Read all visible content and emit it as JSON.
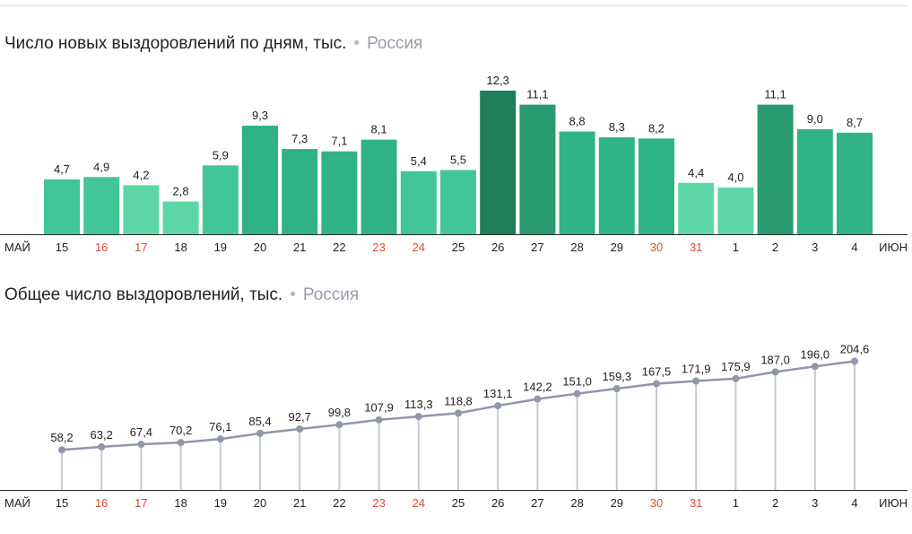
{
  "chart_data": [
    {
      "type": "bar",
      "title": "Число новых выздоровлений по дням, тыс.",
      "region": "Россия",
      "start_month_label": "МАЙ",
      "end_month_label": "ИЮН",
      "categories": [
        "15",
        "16",
        "17",
        "18",
        "19",
        "20",
        "21",
        "22",
        "23",
        "24",
        "25",
        "26",
        "27",
        "28",
        "29",
        "30",
        "31",
        "1",
        "2",
        "3",
        "4"
      ],
      "weekend_categories": [
        "16",
        "17",
        "23",
        "24",
        "30",
        "31"
      ],
      "values": [
        4.7,
        4.9,
        4.2,
        2.8,
        5.9,
        9.3,
        7.3,
        7.1,
        8.1,
        5.4,
        5.5,
        12.3,
        11.1,
        8.8,
        8.3,
        8.2,
        4.4,
        4.0,
        11.1,
        9.0,
        8.7
      ],
      "value_labels": [
        "4,7",
        "4,9",
        "4,2",
        "2,8",
        "5,9",
        "9,3",
        "7,3",
        "7,1",
        "8,1",
        "5,4",
        "5,5",
        "12,3",
        "11,1",
        "8,8",
        "8,3",
        "8,2",
        "4,4",
        "4,0",
        "11,1",
        "9,0",
        "8,7"
      ],
      "color_scale": [
        "#5dd6a7",
        "#42c697",
        "#30b384",
        "#2a9a70",
        "#1f7d5a"
      ],
      "ylim": [
        0,
        12.3
      ]
    },
    {
      "type": "line",
      "title": "Общее число выздоровлений, тыс.",
      "region": "Россия",
      "start_month_label": "МАЙ",
      "end_month_label": "ИЮН",
      "categories": [
        "15",
        "16",
        "17",
        "18",
        "19",
        "20",
        "21",
        "22",
        "23",
        "24",
        "25",
        "26",
        "27",
        "28",
        "29",
        "30",
        "31",
        "1",
        "2",
        "3",
        "4"
      ],
      "weekend_categories": [
        "16",
        "17",
        "23",
        "24",
        "30",
        "31"
      ],
      "values": [
        58.2,
        63.2,
        67.4,
        70.2,
        76.1,
        85.4,
        92.7,
        99.8,
        107.9,
        113.3,
        118.8,
        131.1,
        142.2,
        151.0,
        159.3,
        167.5,
        171.9,
        175.9,
        187.0,
        196.0,
        204.6
      ],
      "value_labels": [
        "58,2",
        "63,2",
        "67,4",
        "70,2",
        "76,1",
        "85,4",
        "92,7",
        "99,8",
        "107,9",
        "113,3",
        "118,8",
        "131,1",
        "142,2",
        "151,0",
        "159,3",
        "167,5",
        "171,9",
        "175,9",
        "187,0",
        "196,0",
        "204,6"
      ],
      "line_color": "#9096ab",
      "stem_color": "#c7c9d1",
      "ylim": [
        0,
        204.6
      ]
    }
  ]
}
